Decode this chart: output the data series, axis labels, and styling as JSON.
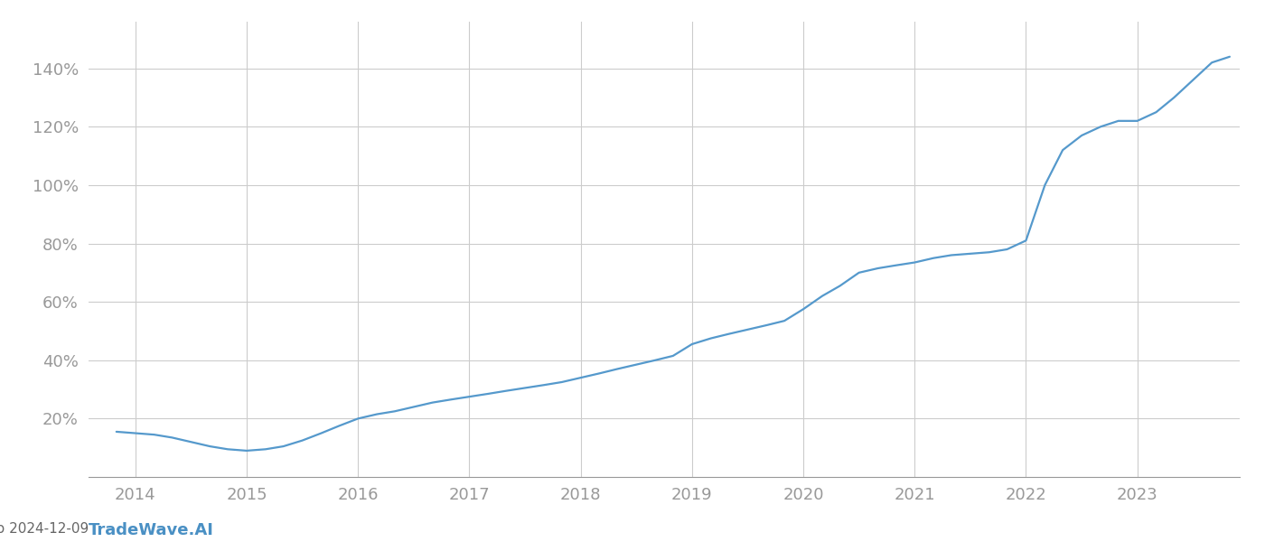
{
  "watermark": "TradeWave.AI",
  "line_color": "#5599cc",
  "background_color": "#ffffff",
  "grid_color": "#cccccc",
  "x_values": [
    2013.83,
    2014.0,
    2014.17,
    2014.33,
    2014.5,
    2014.67,
    2014.83,
    2015.0,
    2015.17,
    2015.33,
    2015.5,
    2015.67,
    2015.83,
    2016.0,
    2016.17,
    2016.33,
    2016.5,
    2016.67,
    2016.83,
    2017.0,
    2017.17,
    2017.33,
    2017.5,
    2017.67,
    2017.83,
    2018.0,
    2018.17,
    2018.33,
    2018.5,
    2018.67,
    2018.83,
    2019.0,
    2019.17,
    2019.33,
    2019.5,
    2019.67,
    2019.83,
    2020.0,
    2020.17,
    2020.33,
    2020.5,
    2020.67,
    2020.83,
    2021.0,
    2021.17,
    2021.33,
    2021.5,
    2021.67,
    2021.83,
    2022.0,
    2022.17,
    2022.33,
    2022.5,
    2022.67,
    2022.83,
    2023.0,
    2023.17,
    2023.33,
    2023.5,
    2023.67,
    2023.83
  ],
  "y_values": [
    0.155,
    0.15,
    0.145,
    0.135,
    0.12,
    0.105,
    0.095,
    0.09,
    0.095,
    0.105,
    0.125,
    0.15,
    0.175,
    0.2,
    0.215,
    0.225,
    0.24,
    0.255,
    0.265,
    0.275,
    0.285,
    0.295,
    0.305,
    0.315,
    0.325,
    0.34,
    0.355,
    0.37,
    0.385,
    0.4,
    0.415,
    0.455,
    0.475,
    0.49,
    0.505,
    0.52,
    0.535,
    0.575,
    0.62,
    0.655,
    0.7,
    0.715,
    0.725,
    0.735,
    0.75,
    0.76,
    0.765,
    0.77,
    0.78,
    0.81,
    1.0,
    1.12,
    1.17,
    1.2,
    1.22,
    1.22,
    1.25,
    1.3,
    1.36,
    1.42,
    1.44
  ],
  "xlim": [
    2013.58,
    2023.92
  ],
  "ylim": [
    0.0,
    1.56
  ],
  "xticks": [
    2014,
    2015,
    2016,
    2017,
    2018,
    2019,
    2020,
    2021,
    2022,
    2023
  ],
  "yticks": [
    0.2,
    0.4,
    0.6,
    0.8,
    1.0,
    1.2,
    1.4
  ],
  "ytick_labels": [
    "20%",
    "40%",
    "60%",
    "80%",
    "100%",
    "120%",
    "140%"
  ],
  "line_width": 1.6,
  "title_fontsize": 11,
  "tick_fontsize": 13,
  "watermark_fontsize": 13,
  "title_color": "#666666",
  "tick_color": "#999999",
  "watermark_color": "#4a90c4"
}
